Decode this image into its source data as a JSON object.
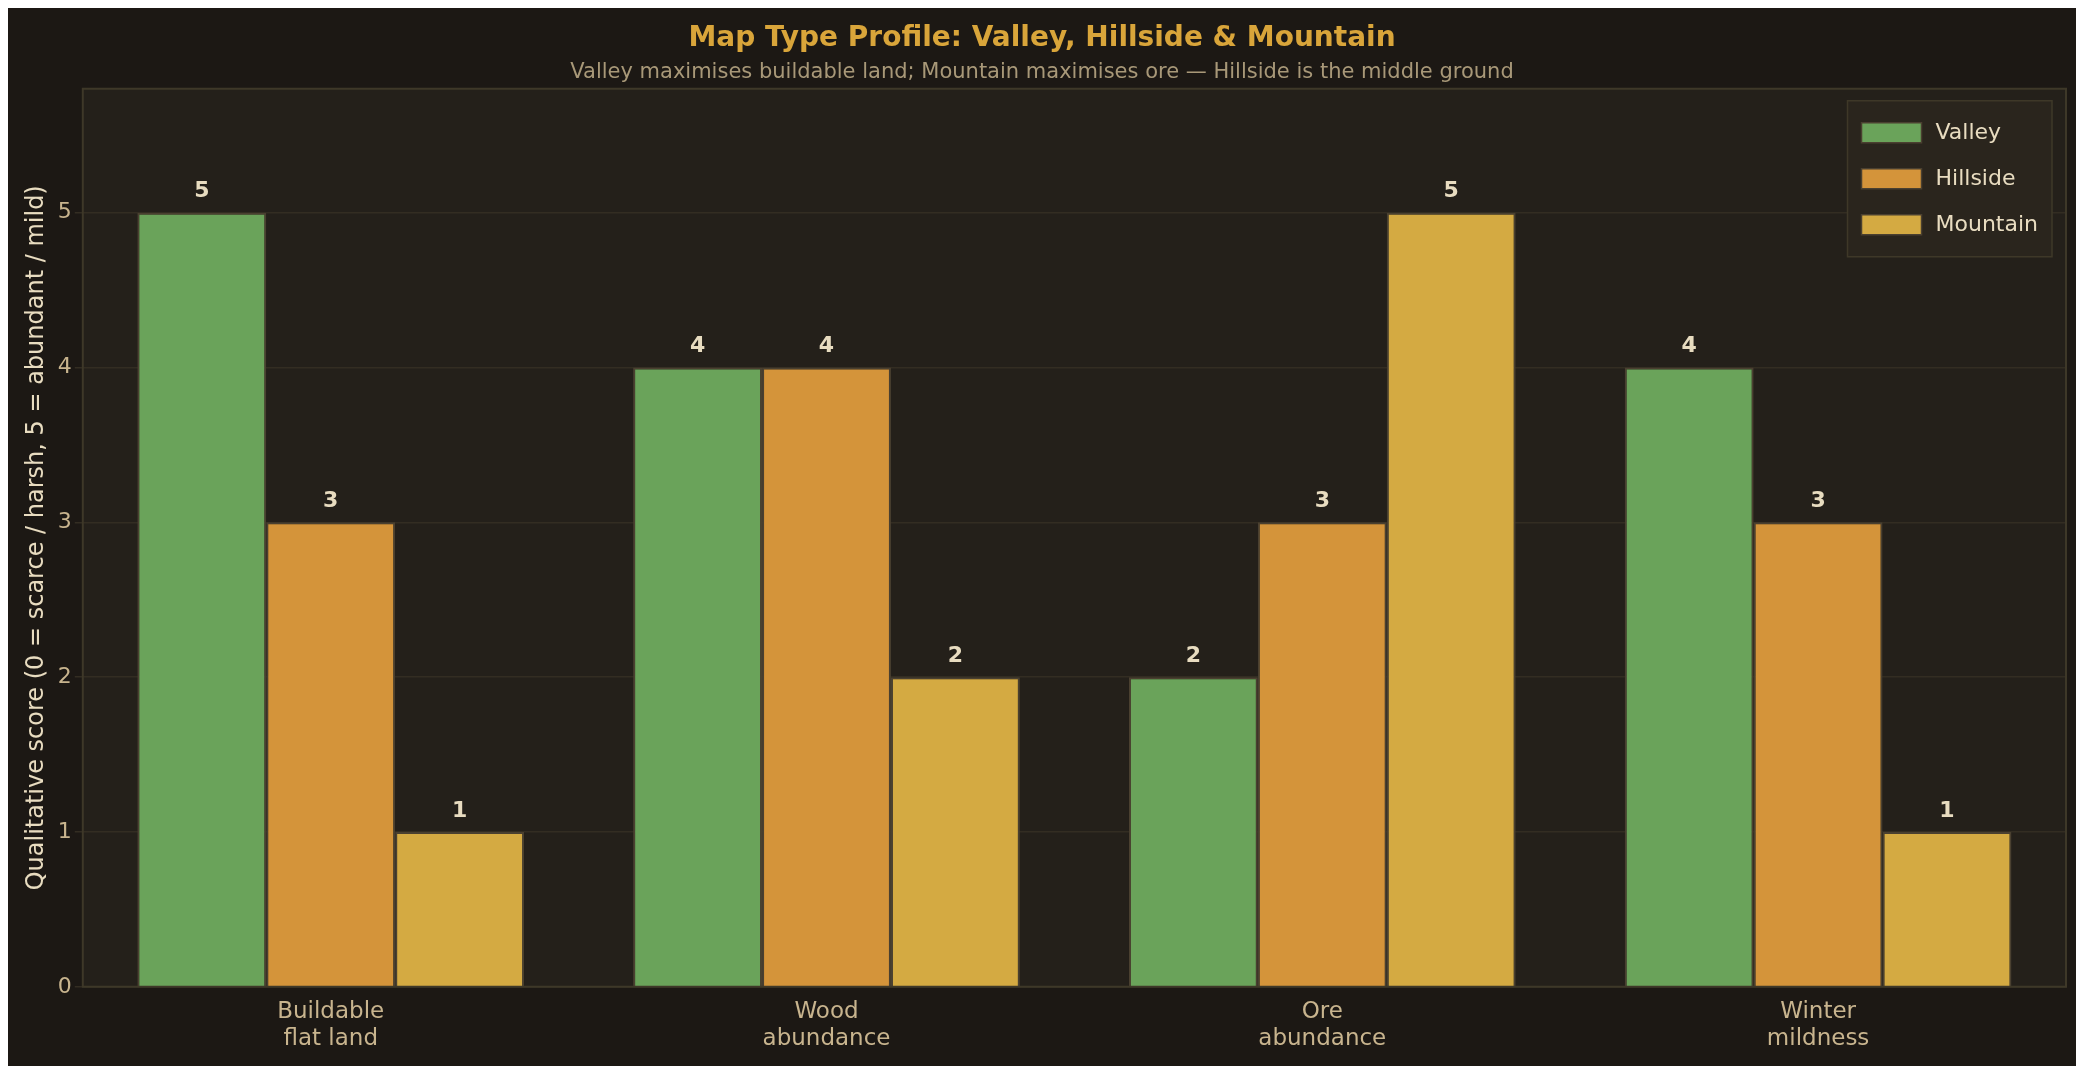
{
  "chart_data": {
    "type": "bar",
    "title": "Map Type Profile: Valley, Hillside & Mountain",
    "subtitle": "Valley maximises buildable land; Mountain maximises ore — Hillside is the middle ground",
    "ylabel": "Qualitative score (0 = scarce / harsh, 5 = abundant / mild)",
    "categories": [
      "Buildable\nflat land",
      "Wood\nabundance",
      "Ore\nabundance",
      "Winter\nmildness"
    ],
    "series": [
      {
        "name": "Valley",
        "color": "#6aa35a",
        "values": [
          5,
          4,
          2,
          4
        ]
      },
      {
        "name": "Hillside",
        "color": "#d4943a",
        "values": [
          3,
          4,
          3,
          3
        ]
      },
      {
        "name": "Mountain",
        "color": "#d4aa42",
        "values": [
          1,
          2,
          5,
          1
        ]
      }
    ],
    "ylim": [
      0,
      5.8
    ],
    "yticks": [
      0,
      1,
      2,
      3,
      4,
      5
    ],
    "grid": "y",
    "legend": "top right",
    "data_labels": true
  }
}
